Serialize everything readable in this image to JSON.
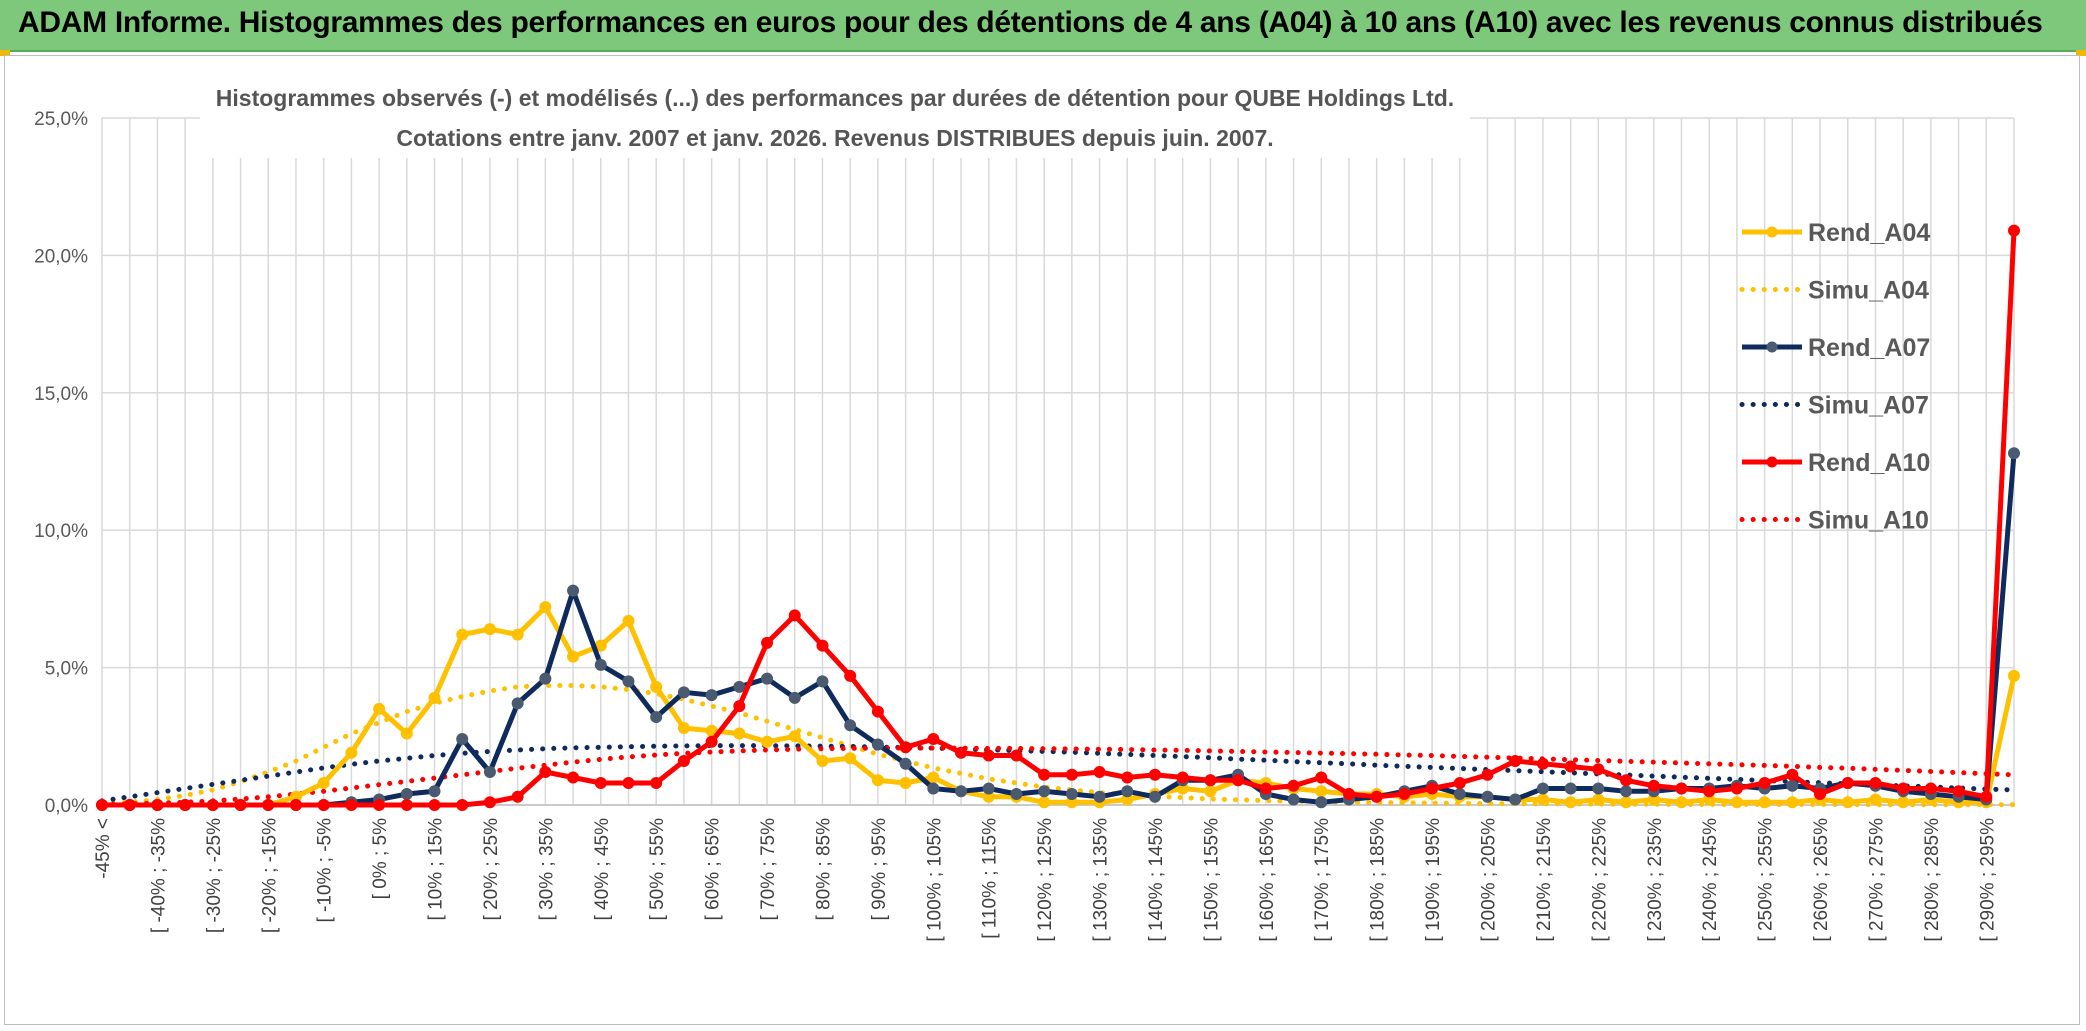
{
  "header": {
    "banner_title": "ADAM Informe. Histogrammes des performances en euros pour des détentions de 4 ans (A04) à 10 ans (A10) avec les revenus connus distribués"
  },
  "colors": {
    "banner_bg": "#7dc87a",
    "a04": "#ffc000",
    "a07": "#0f2a5c",
    "a07_marker": "#4a5a70",
    "a10": "#ff0000",
    "grid": "#d9d9d9"
  },
  "chart_data": {
    "type": "line",
    "title": "Histogrammes observés (-) et modélisés (...) des performances par durées de détention pour QUBE Holdings Ltd.",
    "subtitle": "Cotations entre janv. 2007 et janv. 2026. Revenus DISTRIBUES depuis juin. 2007.",
    "ylim": [
      0,
      25
    ],
    "yticks": [
      0,
      5,
      10,
      15,
      20,
      25
    ],
    "ytick_labels": [
      "0,0%",
      "5,0%",
      "10,0%",
      "15,0%",
      "20,0%",
      "25,0%"
    ],
    "categories_shown": [
      "-45% <",
      "[ -40% ; -35%",
      "[ -30% ; -25%",
      "[ -20% ; -15%",
      "[ -10% ; -5%",
      "[ 0% ; 5%",
      "[ 10% ; 15%",
      "[ 20% ; 25%",
      "[ 30% ; 35%",
      "[ 40% ; 45%",
      "[ 50% ; 55%",
      "[ 60% ; 65%",
      "[ 70% ; 75%",
      "[ 80% ; 85%",
      "[ 90% ; 95%",
      "[ 100% ; 105%",
      "[ 110% ; 115%",
      "[ 120% ; 125%",
      "[ 130% ; 135%",
      "[ 140% ; 145%",
      "[ 150% ; 155%",
      "[ 160% ; 165%",
      "[ 170% ; 175%",
      "[ 180% ; 185%",
      "[ 190% ; 195%",
      "[ 200% ; 205%",
      "[ 210% ; 215%",
      "[ 220% ; 225%",
      "[ 230% ; 235%",
      "[ 240% ; 245%",
      "[ 250% ; 255%",
      "[ 260% ; 265%",
      "[ 270% ; 275%",
      "[ 280% ; 285%",
      "[ 290% ; 295%"
    ],
    "n_categories": 70,
    "legend_position": "right",
    "series": [
      {
        "name": "Rend_A04",
        "style": "solid",
        "color": "#ffc000",
        "values": [
          0,
          0,
          0,
          0,
          0,
          0,
          0,
          0.3,
          0.8,
          1.9,
          3.5,
          2.6,
          3.9,
          6.2,
          6.4,
          6.2,
          7.2,
          5.4,
          5.8,
          6.7,
          4.3,
          2.8,
          2.7,
          2.6,
          2.3,
          2.5,
          1.6,
          1.7,
          0.9,
          0.8,
          1.0,
          0.5,
          0.3,
          0.3,
          0.1,
          0.1,
          0.1,
          0.2,
          0.4,
          0.6,
          0.5,
          0.9,
          0.8,
          0.6,
          0.5,
          0.4,
          0.4,
          0.3,
          0.4,
          0.3,
          0.3,
          0.2,
          0.2,
          0.1,
          0.2,
          0.1,
          0.2,
          0.1,
          0.2,
          0.1,
          0.1,
          0.1,
          0.2,
          0.1,
          0.2,
          0.1,
          0.2,
          0.1,
          0.1,
          4.7
        ]
      },
      {
        "name": "Simu_A04",
        "style": "dotted",
        "color": "#ffc000",
        "values": [
          0.05,
          0.1,
          0.2,
          0.35,
          0.55,
          0.85,
          1.2,
          1.6,
          2.1,
          2.6,
          3.0,
          3.4,
          3.7,
          3.95,
          4.15,
          4.3,
          4.35,
          4.35,
          4.3,
          4.2,
          4.05,
          3.85,
          3.6,
          3.35,
          3.05,
          2.75,
          2.45,
          2.15,
          1.85,
          1.6,
          1.35,
          1.15,
          0.95,
          0.8,
          0.65,
          0.55,
          0.45,
          0.38,
          0.32,
          0.27,
          0.22,
          0.19,
          0.16,
          0.14,
          0.12,
          0.1,
          0.09,
          0.08,
          0.07,
          0.06,
          0.05,
          0.05,
          0.04,
          0.04,
          0.03,
          0.03,
          0.03,
          0.02,
          0.02,
          0.02,
          0.02,
          0.02,
          0.02,
          0.02,
          0.01,
          0.01,
          0.01,
          0.01,
          0.01,
          0.01
        ]
      },
      {
        "name": "Rend_A07",
        "style": "solid",
        "color": "#0f2a5c",
        "values": [
          0,
          0,
          0,
          0,
          0,
          0,
          0,
          0,
          0,
          0.1,
          0.2,
          0.4,
          0.5,
          2.4,
          1.2,
          3.7,
          4.6,
          7.8,
          5.1,
          4.5,
          3.2,
          4.1,
          4.0,
          4.3,
          4.6,
          3.9,
          4.5,
          2.9,
          2.2,
          1.5,
          0.6,
          0.5,
          0.6,
          0.4,
          0.5,
          0.4,
          0.3,
          0.5,
          0.3,
          0.9,
          0.9,
          1.1,
          0.4,
          0.2,
          0.1,
          0.2,
          0.3,
          0.5,
          0.7,
          0.4,
          0.3,
          0.2,
          0.6,
          0.6,
          0.6,
          0.5,
          0.5,
          0.6,
          0.6,
          0.7,
          0.6,
          0.7,
          0.6,
          0.8,
          0.7,
          0.5,
          0.4,
          0.3,
          0.2,
          12.8
        ]
      },
      {
        "name": "Simu_A07",
        "style": "dotted",
        "color": "#0f2a5c",
        "values": [
          0.15,
          0.3,
          0.45,
          0.6,
          0.75,
          0.9,
          1.05,
          1.2,
          1.35,
          1.48,
          1.6,
          1.7,
          1.8,
          1.88,
          1.95,
          2.0,
          2.05,
          2.08,
          2.1,
          2.12,
          2.14,
          2.15,
          2.16,
          2.16,
          2.16,
          2.15,
          2.14,
          2.13,
          2.11,
          2.09,
          2.07,
          2.04,
          2.01,
          1.98,
          1.95,
          1.92,
          1.88,
          1.84,
          1.8,
          1.76,
          1.72,
          1.67,
          1.63,
          1.58,
          1.54,
          1.5,
          1.45,
          1.41,
          1.37,
          1.33,
          1.29,
          1.25,
          1.21,
          1.17,
          1.13,
          1.09,
          1.05,
          1.01,
          0.97,
          0.93,
          0.89,
          0.85,
          0.81,
          0.77,
          0.73,
          0.7,
          0.66,
          0.62,
          0.58,
          0.55
        ]
      },
      {
        "name": "Rend_A10",
        "style": "solid",
        "color": "#ff0000",
        "values": [
          0,
          0,
          0,
          0,
          0,
          0,
          0,
          0,
          0,
          0,
          0,
          0,
          0,
          0,
          0.1,
          0.3,
          1.2,
          1.0,
          0.8,
          0.8,
          0.8,
          1.6,
          2.3,
          3.6,
          5.9,
          6.9,
          5.8,
          4.7,
          3.4,
          2.1,
          2.4,
          1.9,
          1.8,
          1.8,
          1.1,
          1.1,
          1.2,
          1.0,
          1.1,
          1.0,
          0.9,
          0.9,
          0.6,
          0.7,
          1.0,
          0.4,
          0.3,
          0.4,
          0.6,
          0.8,
          1.1,
          1.6,
          1.5,
          1.4,
          1.3,
          0.9,
          0.7,
          0.6,
          0.5,
          0.6,
          0.8,
          1.1,
          0.4,
          0.8,
          0.8,
          0.6,
          0.6,
          0.5,
          0.3,
          20.9
        ]
      },
      {
        "name": "Simu_A10",
        "style": "dotted",
        "color": "#ff0000",
        "values": [
          0.02,
          0.04,
          0.07,
          0.1,
          0.15,
          0.22,
          0.3,
          0.4,
          0.5,
          0.62,
          0.74,
          0.86,
          0.98,
          1.1,
          1.22,
          1.34,
          1.45,
          1.56,
          1.66,
          1.75,
          1.82,
          1.88,
          1.93,
          1.97,
          2.0,
          2.03,
          2.05,
          2.06,
          2.07,
          2.07,
          2.07,
          2.07,
          2.06,
          2.06,
          2.05,
          2.04,
          2.03,
          2.02,
          2.0,
          1.99,
          1.97,
          1.95,
          1.93,
          1.91,
          1.89,
          1.87,
          1.85,
          1.82,
          1.8,
          1.77,
          1.74,
          1.71,
          1.68,
          1.65,
          1.62,
          1.59,
          1.56,
          1.53,
          1.5,
          1.47,
          1.44,
          1.41,
          1.37,
          1.34,
          1.3,
          1.26,
          1.22,
          1.18,
          1.14,
          1.1
        ]
      }
    ]
  }
}
